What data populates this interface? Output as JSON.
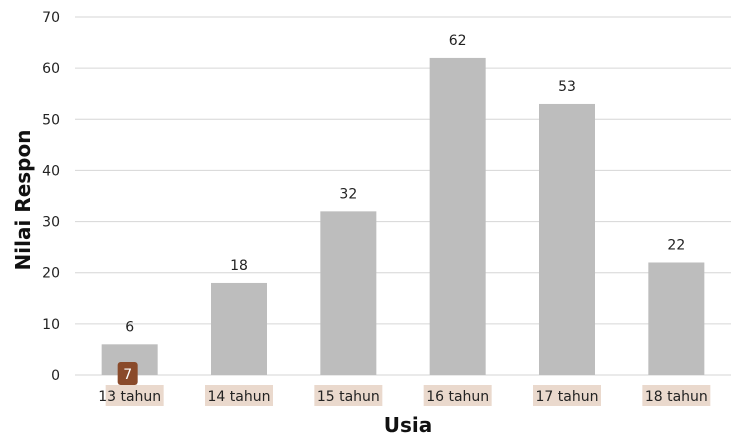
{
  "chart_data": {
    "type": "bar",
    "title": "",
    "xlabel": "Usia",
    "ylabel": "Nilai Respon",
    "categories": [
      "13 tahun",
      "14 tahun",
      "15 tahun",
      "16 tahun",
      "17 tahun",
      "18 tahun"
    ],
    "values": [
      6,
      18,
      32,
      62,
      53,
      22
    ],
    "ylim": [
      0,
      70
    ],
    "yticks": [
      0,
      10,
      20,
      30,
      40,
      50,
      60,
      70
    ],
    "grid": true,
    "data_labels": true
  },
  "colors": {
    "bar": "#bdbdbd",
    "category_highlight": "#ead9cd",
    "badge": "#8a4a2a"
  },
  "badge": {
    "text": "7",
    "category_index": 0
  }
}
